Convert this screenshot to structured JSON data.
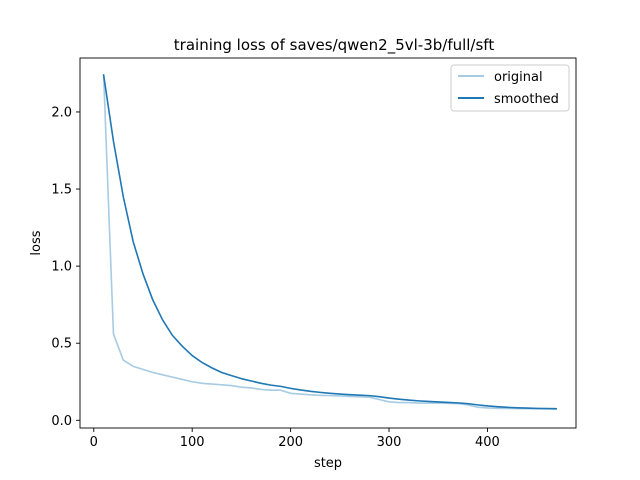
{
  "chart_data": {
    "type": "line",
    "title": "training loss of saves/qwen2_5vl-3b/full/sft",
    "xlabel": "step",
    "ylabel": "loss",
    "xlim": [
      -14,
      490
    ],
    "ylim": [
      -0.05,
      2.35
    ],
    "xticks": [
      0,
      100,
      200,
      300,
      400
    ],
    "yticks": [
      0.0,
      0.5,
      1.0,
      1.5,
      2.0
    ],
    "xtick_labels": [
      "0",
      "100",
      "200",
      "300",
      "400"
    ],
    "ytick_labels": [
      "0.0",
      "0.5",
      "1.0",
      "1.5",
      "2.0"
    ],
    "legend_position": "upper right",
    "grid": false,
    "series": [
      {
        "name": "original",
        "color": "#a6cbe3",
        "x": [
          10,
          20,
          30,
          40,
          50,
          60,
          70,
          80,
          90,
          100,
          110,
          120,
          130,
          140,
          150,
          160,
          170,
          180,
          190,
          200,
          210,
          220,
          230,
          240,
          250,
          260,
          270,
          280,
          290,
          300,
          310,
          320,
          330,
          340,
          350,
          360,
          370,
          380,
          390,
          400,
          410,
          420,
          430,
          440,
          450,
          460,
          470
        ],
        "y": [
          2.24,
          0.56,
          0.39,
          0.35,
          0.33,
          0.31,
          0.295,
          0.28,
          0.265,
          0.25,
          0.24,
          0.235,
          0.23,
          0.225,
          0.215,
          0.21,
          0.2,
          0.195,
          0.195,
          0.175,
          0.17,
          0.165,
          0.162,
          0.16,
          0.158,
          0.155,
          0.152,
          0.15,
          0.135,
          0.12,
          0.115,
          0.115,
          0.112,
          0.112,
          0.112,
          0.11,
          0.108,
          0.1,
          0.085,
          0.08,
          0.078,
          0.077,
          0.076,
          0.075,
          0.075,
          0.074,
          0.073
        ]
      },
      {
        "name": "smoothed",
        "color": "#1f77b4",
        "x": [
          10,
          20,
          30,
          40,
          50,
          60,
          70,
          80,
          90,
          100,
          110,
          120,
          130,
          140,
          150,
          160,
          170,
          180,
          190,
          200,
          210,
          220,
          230,
          240,
          250,
          260,
          270,
          280,
          290,
          300,
          310,
          320,
          330,
          340,
          350,
          360,
          370,
          380,
          390,
          400,
          410,
          420,
          430,
          440,
          450,
          460,
          470
        ],
        "y": [
          2.24,
          1.81,
          1.45,
          1.16,
          0.95,
          0.78,
          0.65,
          0.55,
          0.48,
          0.42,
          0.375,
          0.34,
          0.31,
          0.29,
          0.27,
          0.255,
          0.24,
          0.228,
          0.22,
          0.207,
          0.197,
          0.188,
          0.181,
          0.175,
          0.17,
          0.166,
          0.163,
          0.16,
          0.153,
          0.144,
          0.137,
          0.131,
          0.126,
          0.122,
          0.119,
          0.116,
          0.113,
          0.108,
          0.1,
          0.093,
          0.088,
          0.084,
          0.081,
          0.079,
          0.077,
          0.076,
          0.075
        ]
      }
    ]
  }
}
